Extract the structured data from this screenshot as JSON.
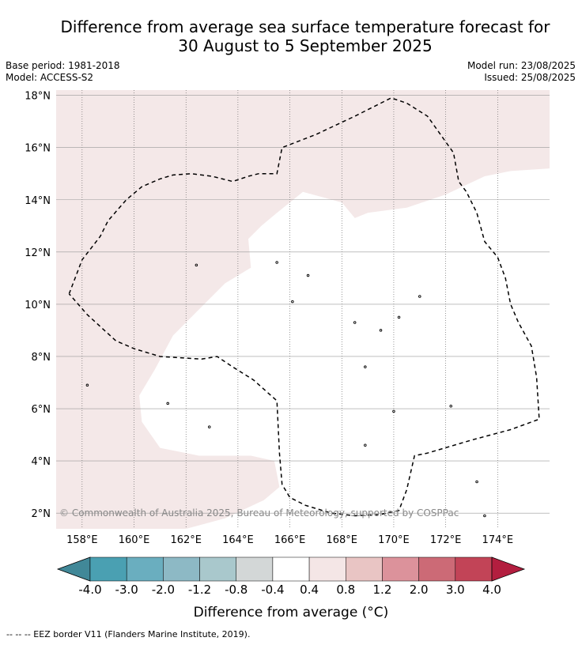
{
  "title_line1": "Difference from average sea surface temperature forecast for",
  "title_line2": "30 August to 5 September 2025",
  "meta": {
    "base_period": "Base period: 1981-2018",
    "model": "Model: ACCESS-S2",
    "model_run": "Model run: 23/08/2025",
    "issued": "Issued: 25/08/2025"
  },
  "attribution": "© Commonwealth of Australia 2025, Bureau of Meteorology, supported by COSPPac",
  "footnote": "-- -- -- EEZ border V11 (Flanders Marine Institute, 2019).",
  "colorbar_label": "Difference from average (°C)",
  "colors": {
    "land_fill": "#f4e8e8",
    "ocean_fill": "#ffffff",
    "grid": "#555555",
    "eez": "#000000"
  },
  "chart_data": {
    "type": "heatmap",
    "xlabel": "",
    "ylabel": "",
    "xlim": [
      157,
      176
    ],
    "ylim": [
      1.4,
      18.2
    ],
    "x_ticks": [
      158,
      160,
      162,
      164,
      166,
      168,
      170,
      172,
      174
    ],
    "x_tick_labels": [
      "158°E",
      "160°E",
      "162°E",
      "164°E",
      "166°E",
      "168°E",
      "170°E",
      "172°E",
      "174°E"
    ],
    "y_ticks": [
      2,
      4,
      6,
      8,
      10,
      12,
      14,
      16,
      18
    ],
    "y_tick_labels": [
      "2°N",
      "4°N",
      "6°N",
      "8°N",
      "10°N",
      "12°N",
      "14°N",
      "16°N",
      "18°N"
    ],
    "grid": true,
    "dominant_anomaly_range": "0.4 to 0.8",
    "colorbar": {
      "ticks": [
        "-4.0",
        "-3.0",
        "-2.0",
        "-1.2",
        "-0.8",
        "-0.4",
        "0.4",
        "0.8",
        "1.2",
        "2.0",
        "3.0",
        "4.0"
      ],
      "colors": [
        "#418898",
        "#4aa0b2",
        "#6aaebf",
        "#8db9c5",
        "#a9c8cc",
        "#d3d7d7",
        "#ffffff",
        "#f4e6e6",
        "#e9c5c4",
        "#dc929b",
        "#cc6a76",
        "#c24457",
        "#b31e3f"
      ]
    },
    "region_anomaly": [
      {
        "region": "north and west of plot",
        "range": "0.4 to 0.8"
      },
      {
        "region": "central EEZ",
        "range": "-0.4 to 0.4"
      }
    ]
  }
}
